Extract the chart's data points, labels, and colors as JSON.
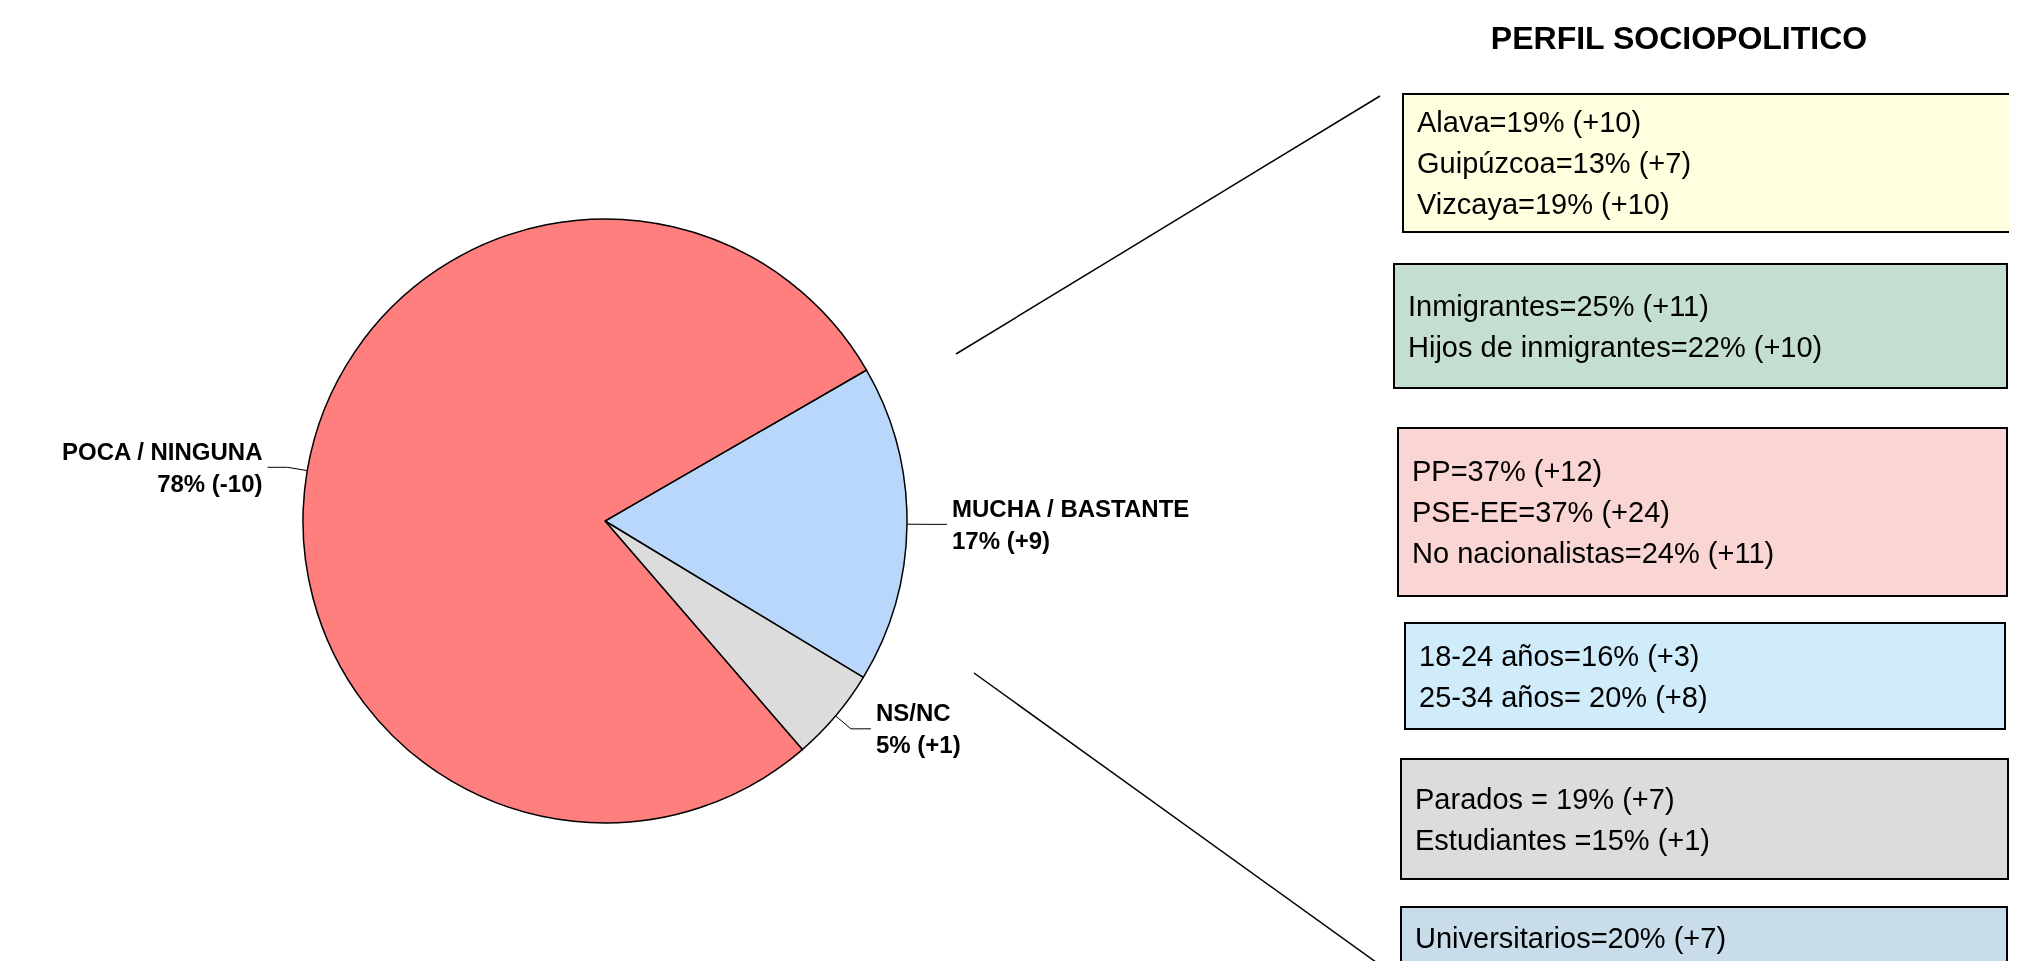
{
  "chart_data": {
    "type": "pie",
    "title": "PERFIL SOCIOPOLITICO",
    "categories": [
      "MUCHA / BASTANTE",
      "NS/NC",
      "POCA / NINGUNA"
    ],
    "values": [
      17,
      5,
      78
    ],
    "colors": [
      "#b9d7fb",
      "#dcdcdc",
      "#ff7f7f"
    ],
    "value_labels": [
      "17% (+9)",
      "5% (+1)",
      "78% (-10)"
    ],
    "annotations": [
      "Alava=19% (+10)\nGuipúzcoa=13% (+7)\nVizcaya=19% (+10)",
      "Inmigrantes=25% (+11)\nHijos de inmigrantes=22% (+10)",
      "PP=37% (+12)\nPSE-EE=37% (+24)\nNo nacionalistas=24% (+11)",
      "18-24 años=16% (+3)\n25-34 años= 20% (+8)",
      "Parados = 19% (+7)\nEstudiantes =15% (+1)",
      "Universitarios=20% (+7)"
    ]
  }
}
